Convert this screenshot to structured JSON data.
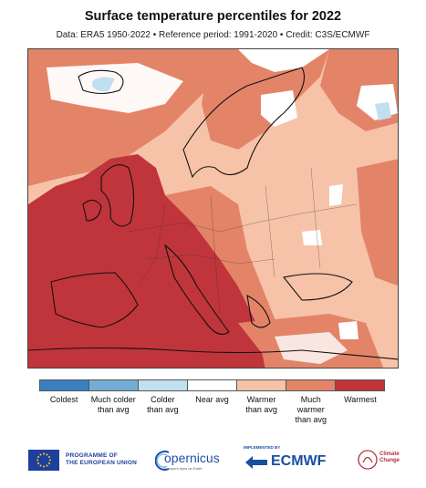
{
  "title": "Surface temperature percentiles for 2022",
  "subtitle": "Data: ERA5 1950-2022 • Reference period: 1991-2020 • Credit: C3S/ECMWF",
  "colors": {
    "coldest": "#3a7fbf",
    "much_colder": "#74add3",
    "colder": "#c2dfef",
    "near": "#ffffff",
    "warmer": "#f6c3a9",
    "much_warmer": "#e38469",
    "warmest": "#c0353b"
  },
  "legend": [
    {
      "label": "Coldest",
      "color": "#3a7fbf"
    },
    {
      "label": "Much colder\nthan avg",
      "color": "#74add3"
    },
    {
      "label": "Colder\nthan avg",
      "color": "#c2dfef"
    },
    {
      "label": "Near avg",
      "color": "#ffffff"
    },
    {
      "label": "Warmer\nthan avg",
      "color": "#f6c3a9"
    },
    {
      "label": "Much warmer\nthan avg",
      "color": "#e38469"
    },
    {
      "label": "Warmest",
      "color": "#c0353b"
    }
  ],
  "logos": {
    "eu": "PROGRAMME OF\nTHE EUROPEAN UNION",
    "copernicus": "opernicus",
    "copernicus_tag": "Europe's eyes on Earth",
    "ecmwf_implemented": "IMPLEMENTED BY",
    "ecmwf": "ECMWF",
    "climate": "Climate\nChange"
  }
}
